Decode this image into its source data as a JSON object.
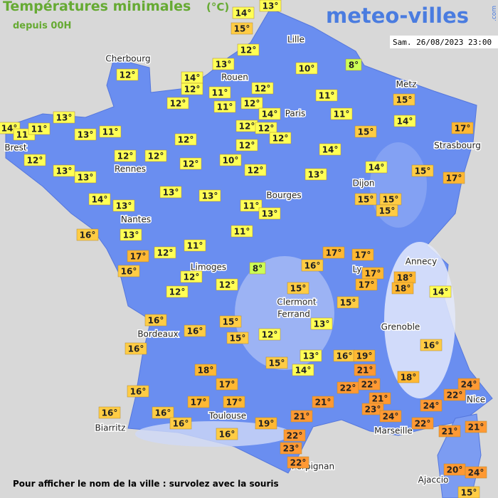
{
  "header": {
    "title": "Températures minimales",
    "unit": "(°C)",
    "subtitle": "depuis 00H"
  },
  "logo": {
    "name": "meteo-villes",
    "suffix": ".com"
  },
  "timestamp": "Sam. 26/08/2023 23:00",
  "cities": [
    "Cherbourg",
    "Lille",
    "Rouen",
    "Metz",
    "Paris",
    "Brest",
    "Strasbourg",
    "Rennes",
    "Dijon",
    "Bourges",
    "Nantes",
    "Annecy",
    "Limoges",
    "Ly",
    "Clermont",
    "Ferrand",
    "Grenoble",
    "Bordeaux",
    "Nice",
    "Toulouse",
    "Marseille",
    "Biarritz",
    "Perpignan",
    "Ajaccio"
  ],
  "temperatures": [
    "13°",
    "14°",
    "15°",
    "12°",
    "8°",
    "10°",
    "13°",
    "14°",
    "12°",
    "11°",
    "12°",
    "12°",
    "11°",
    "12°",
    "14°",
    "11°",
    "11°",
    "15°",
    "14°",
    "12°",
    "13°",
    "14°",
    "11°",
    "11°",
    "13°",
    "11°",
    "12°",
    "12°",
    "12°",
    "15°",
    "17°",
    "12°",
    "12°",
    "14°",
    "12°",
    "12°",
    "12°",
    "12°",
    "10°",
    "13°",
    "13°",
    "12°",
    "13°",
    "14°",
    "15°",
    "17°",
    "14°",
    "13°",
    "13°",
    "13°",
    "11°",
    "13°",
    "15°",
    "15°",
    "15°",
    "16°",
    "13°",
    "11°",
    "12°",
    "11°",
    "17°",
    "16°",
    "17°",
    "17°",
    "8°",
    "16°",
    "17°",
    "18°",
    "18°",
    "12°",
    "12°",
    "12°",
    "15°",
    "17°",
    "14°",
    "15°",
    "16°",
    "15°",
    "16°",
    "13°",
    "12°",
    "15°",
    "16°",
    "16°",
    "13°",
    "16°",
    "19°",
    "15°",
    "14°",
    "21°",
    "18°",
    "18°",
    "22°",
    "22°",
    "17°",
    "24°",
    "16°",
    "22°",
    "21°",
    "21°",
    "17°",
    "17°",
    "23°",
    "24°",
    "24°",
    "16°",
    "16°",
    "21°",
    "16°",
    "19°",
    "22°",
    "16°",
    "22°",
    "21°",
    "21°",
    "23°",
    "22°",
    "20°",
    "24°",
    "15°"
  ],
  "footer": "Pour afficher le nom de la ville : survolez avec la souris"
}
